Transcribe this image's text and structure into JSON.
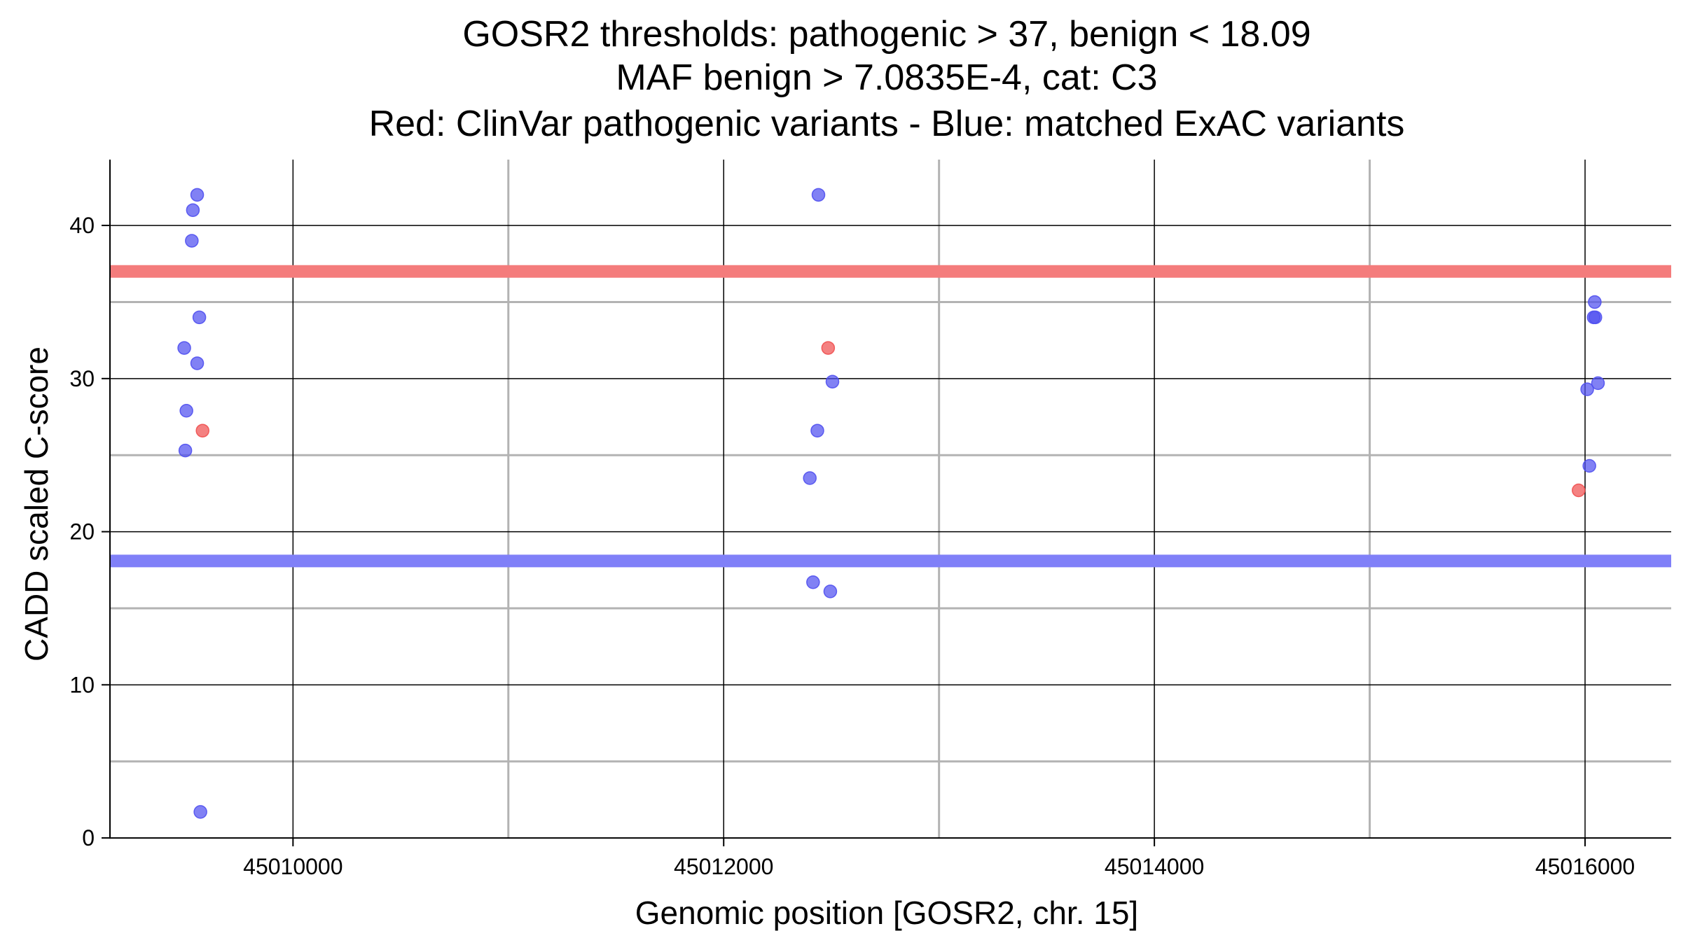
{
  "chart_data": {
    "type": "scatter",
    "title_lines": [
      "GOSR2 thresholds: pathogenic > 37, benign < 18.09",
      "MAF benign > 7.0835E-4, cat: C3",
      "Red: ClinVar pathogenic variants - Blue: matched ExAC variants"
    ],
    "xlabel": "Genomic position [GOSR2, chr. 15]",
    "ylabel": "CADD scaled C-score",
    "xlim": [
      45009150,
      45016400
    ],
    "ylim": [
      -0.5,
      44.3
    ],
    "x_ticks": [
      45010000,
      45012000,
      45014000,
      45016000
    ],
    "x_tick_labels": [
      "45010000",
      "45012000",
      "45014000",
      "45016000"
    ],
    "x_minor_grid": [
      45011000,
      45013000,
      45015000
    ],
    "y_ticks": [
      0,
      10,
      20,
      30,
      40
    ],
    "y_tick_labels": [
      "0",
      "10",
      "20",
      "30",
      "40"
    ],
    "y_minor_grid": [
      5,
      15,
      25,
      35
    ],
    "thresholds": [
      {
        "name": "pathogenic",
        "value": 37,
        "color": "#f47c7c"
      },
      {
        "name": "benign",
        "value": 18.09,
        "color": "#8080f8"
      }
    ],
    "series": [
      {
        "name": "ClinVar pathogenic variants",
        "color": "#f05050",
        "points": [
          {
            "x": 45009580,
            "y": 26.6
          },
          {
            "x": 45012485,
            "y": 32.0
          },
          {
            "x": 45015970,
            "y": 22.7
          }
        ]
      },
      {
        "name": "matched ExAC variants",
        "color": "#5050f0",
        "points": [
          {
            "x": 45009555,
            "y": 42.0
          },
          {
            "x": 45009535,
            "y": 41.0
          },
          {
            "x": 45009530,
            "y": 39.0
          },
          {
            "x": 45009565,
            "y": 34.0
          },
          {
            "x": 45009495,
            "y": 32.0
          },
          {
            "x": 45009555,
            "y": 31.0
          },
          {
            "x": 45009505,
            "y": 27.9
          },
          {
            "x": 45009500,
            "y": 25.3
          },
          {
            "x": 45009570,
            "y": 1.7
          },
          {
            "x": 45012440,
            "y": 42.0
          },
          {
            "x": 45012505,
            "y": 29.8
          },
          {
            "x": 45012435,
            "y": 26.6
          },
          {
            "x": 45012400,
            "y": 23.5
          },
          {
            "x": 45012415,
            "y": 16.7
          },
          {
            "x": 45012495,
            "y": 16.1
          },
          {
            "x": 45016045,
            "y": 35.0
          },
          {
            "x": 45016040,
            "y": 34.0
          },
          {
            "x": 45016048,
            "y": 34.0
          },
          {
            "x": 45016060,
            "y": 29.7
          },
          {
            "x": 45016010,
            "y": 29.3
          },
          {
            "x": 45016020,
            "y": 24.3
          }
        ]
      }
    ]
  }
}
